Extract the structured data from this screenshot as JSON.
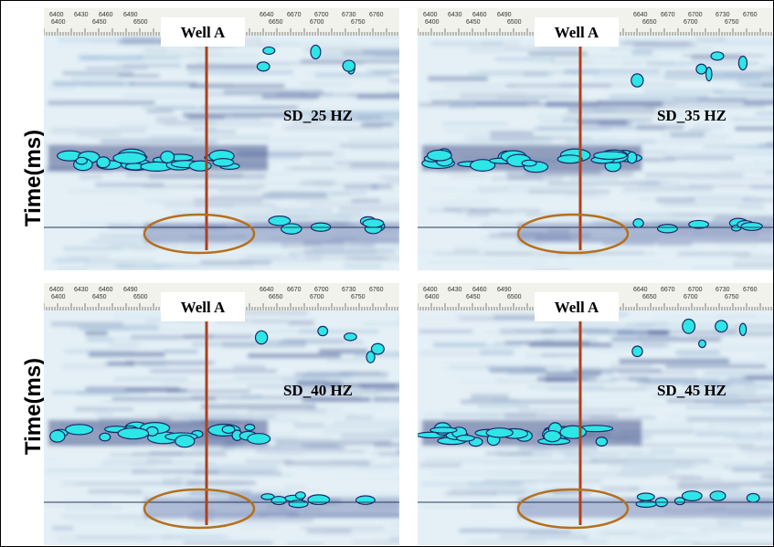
{
  "y_axis_labels": [
    "Time(ms)",
    "Time(ms)"
  ],
  "panels": [
    {
      "well_label": "Well A",
      "freq_label": "SD_25 HZ",
      "scale_top": [
        "6400",
        "6430",
        "6460",
        "6490",
        "6640",
        "6670",
        "6700",
        "6730",
        "6760"
      ],
      "scale_bottom": [
        "6400",
        "6450",
        "6500",
        "6650",
        "6700",
        "6750"
      ]
    },
    {
      "well_label": "Well A",
      "freq_label": "SD_35 HZ",
      "scale_top": [
        "6400",
        "6430",
        "6460",
        "6490",
        "6640",
        "6670",
        "6700",
        "6730",
        "6760"
      ],
      "scale_bottom": [
        "6400",
        "6450",
        "6500",
        "6650",
        "6700",
        "6750"
      ]
    },
    {
      "well_label": "Well A",
      "freq_label": "SD_40 HZ",
      "scale_top": [
        "6400",
        "6430",
        "6460",
        "6490",
        "6640",
        "6670",
        "6700",
        "6730",
        "6760"
      ],
      "scale_bottom": [
        "6400",
        "6450",
        "6500",
        "6650",
        "6700",
        "6750"
      ]
    },
    {
      "well_label": "Well A",
      "freq_label": "SD_45 HZ",
      "scale_top": [
        "6400",
        "6430",
        "6460",
        "6490",
        "6640",
        "6670",
        "6700",
        "6730",
        "6760"
      ],
      "scale_bottom": [
        "6400",
        "6450",
        "6500",
        "6650",
        "6700",
        "6750"
      ]
    }
  ]
}
